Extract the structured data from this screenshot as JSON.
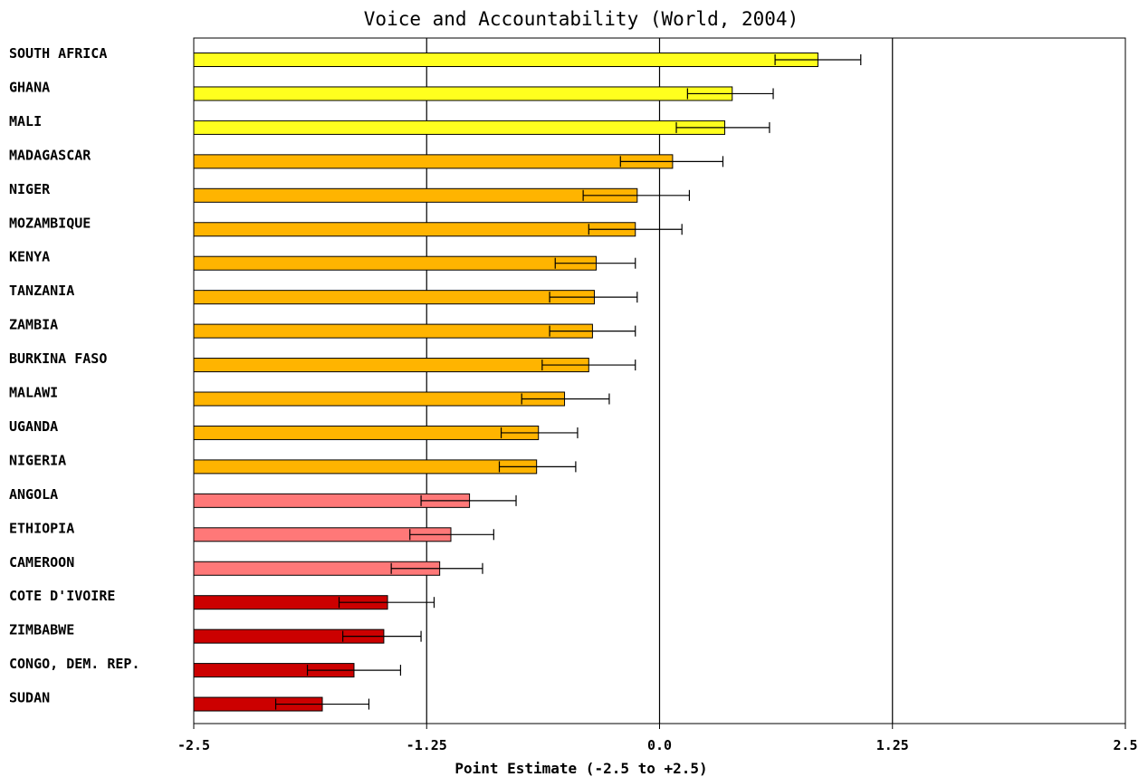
{
  "chart_data": {
    "type": "bar",
    "orientation": "horizontal",
    "title": "Voice and Accountability (World, 2004)",
    "xlabel": "Point Estimate (-2.5 to +2.5)",
    "ylabel": "",
    "xlim": [
      -2.5,
      2.5
    ],
    "ticks": [
      -2.5,
      -1.25,
      0.0,
      1.25,
      2.5
    ],
    "tick_labels": [
      "-2.5",
      "-1.25",
      "0.0",
      "1.25",
      "2.5"
    ],
    "grid": "vertical lines at -1.25, 0.0, 1.25",
    "error_bars": true,
    "categories": [
      "SOUTH AFRICA",
      "GHANA",
      "MALI",
      "MADAGASCAR",
      "NIGER",
      "MOZAMBIQUE",
      "KENYA",
      "TANZANIA",
      "ZAMBIA",
      "BURKINA FASO",
      "MALAWI",
      "UGANDA",
      "NIGERIA",
      "ANGOLA",
      "ETHIOPIA",
      "CAMEROON",
      "COTE D'IVOIRE",
      "ZIMBABWE",
      "CONGO, DEM. REP.",
      "SUDAN"
    ],
    "values": [
      0.85,
      0.39,
      0.35,
      0.07,
      -0.12,
      -0.13,
      -0.34,
      -0.35,
      -0.36,
      -0.38,
      -0.51,
      -0.65,
      -0.66,
      -1.02,
      -1.12,
      -1.18,
      -1.46,
      -1.48,
      -1.64,
      -1.81
    ],
    "error_low": [
      0.62,
      0.15,
      0.09,
      -0.21,
      -0.41,
      -0.38,
      -0.56,
      -0.59,
      -0.59,
      -0.63,
      -0.74,
      -0.85,
      -0.86,
      -1.28,
      -1.34,
      -1.44,
      -1.72,
      -1.7,
      -1.89,
      -2.06
    ],
    "error_high": [
      1.08,
      0.61,
      0.59,
      0.34,
      0.16,
      0.12,
      -0.13,
      -0.12,
      -0.13,
      -0.13,
      -0.27,
      -0.44,
      -0.45,
      -0.77,
      -0.89,
      -0.95,
      -1.21,
      -1.28,
      -1.39,
      -1.56
    ],
    "bar_colors": [
      "#ffff1e",
      "#ffff1e",
      "#ffff1e",
      "#ffb400",
      "#ffb400",
      "#ffb400",
      "#ffb400",
      "#ffb400",
      "#ffb400",
      "#ffb400",
      "#ffb400",
      "#ffb400",
      "#ffb400",
      "#ff7878",
      "#ff7878",
      "#ff7878",
      "#cc0000",
      "#cc0000",
      "#cc0000",
      "#cc0000"
    ]
  }
}
